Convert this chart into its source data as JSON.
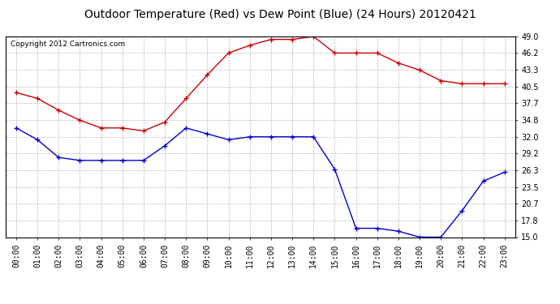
{
  "title": "Outdoor Temperature (Red) vs Dew Point (Blue) (24 Hours) 20120421",
  "copyright": "Copyright 2012 Cartronics.com",
  "x_labels": [
    "00:00",
    "01:00",
    "02:00",
    "03:00",
    "04:00",
    "05:00",
    "06:00",
    "07:00",
    "08:00",
    "09:00",
    "10:00",
    "11:00",
    "12:00",
    "13:00",
    "14:00",
    "15:00",
    "16:00",
    "17:00",
    "18:00",
    "19:00",
    "20:00",
    "21:00",
    "22:00",
    "23:00"
  ],
  "temp_red": [
    39.5,
    38.5,
    36.5,
    34.8,
    33.5,
    33.5,
    33.0,
    34.5,
    38.5,
    42.5,
    46.2,
    47.5,
    48.5,
    48.5,
    49.0,
    46.2,
    46.2,
    46.2,
    44.5,
    43.3,
    41.5,
    41.0,
    41.0,
    41.0
  ],
  "dew_blue": [
    33.5,
    31.5,
    28.5,
    28.0,
    28.0,
    28.0,
    28.0,
    30.5,
    33.5,
    32.5,
    31.5,
    32.0,
    32.0,
    32.0,
    32.0,
    26.5,
    16.5,
    16.5,
    16.0,
    15.0,
    15.0,
    19.5,
    24.5,
    26.0
  ],
  "ylim": [
    15.0,
    49.0
  ],
  "yticks": [
    15.0,
    17.8,
    20.7,
    23.5,
    26.3,
    29.2,
    32.0,
    34.8,
    37.7,
    40.5,
    43.3,
    46.2,
    49.0
  ],
  "red_color": "#cc0000",
  "blue_color": "#0000cc",
  "bg_color": "#ffffff",
  "plot_bg": "#ffffff",
  "grid_color": "#bbbbbb",
  "title_fontsize": 10,
  "copyright_fontsize": 6.5,
  "tick_fontsize": 7,
  "ytick_fontsize": 7
}
